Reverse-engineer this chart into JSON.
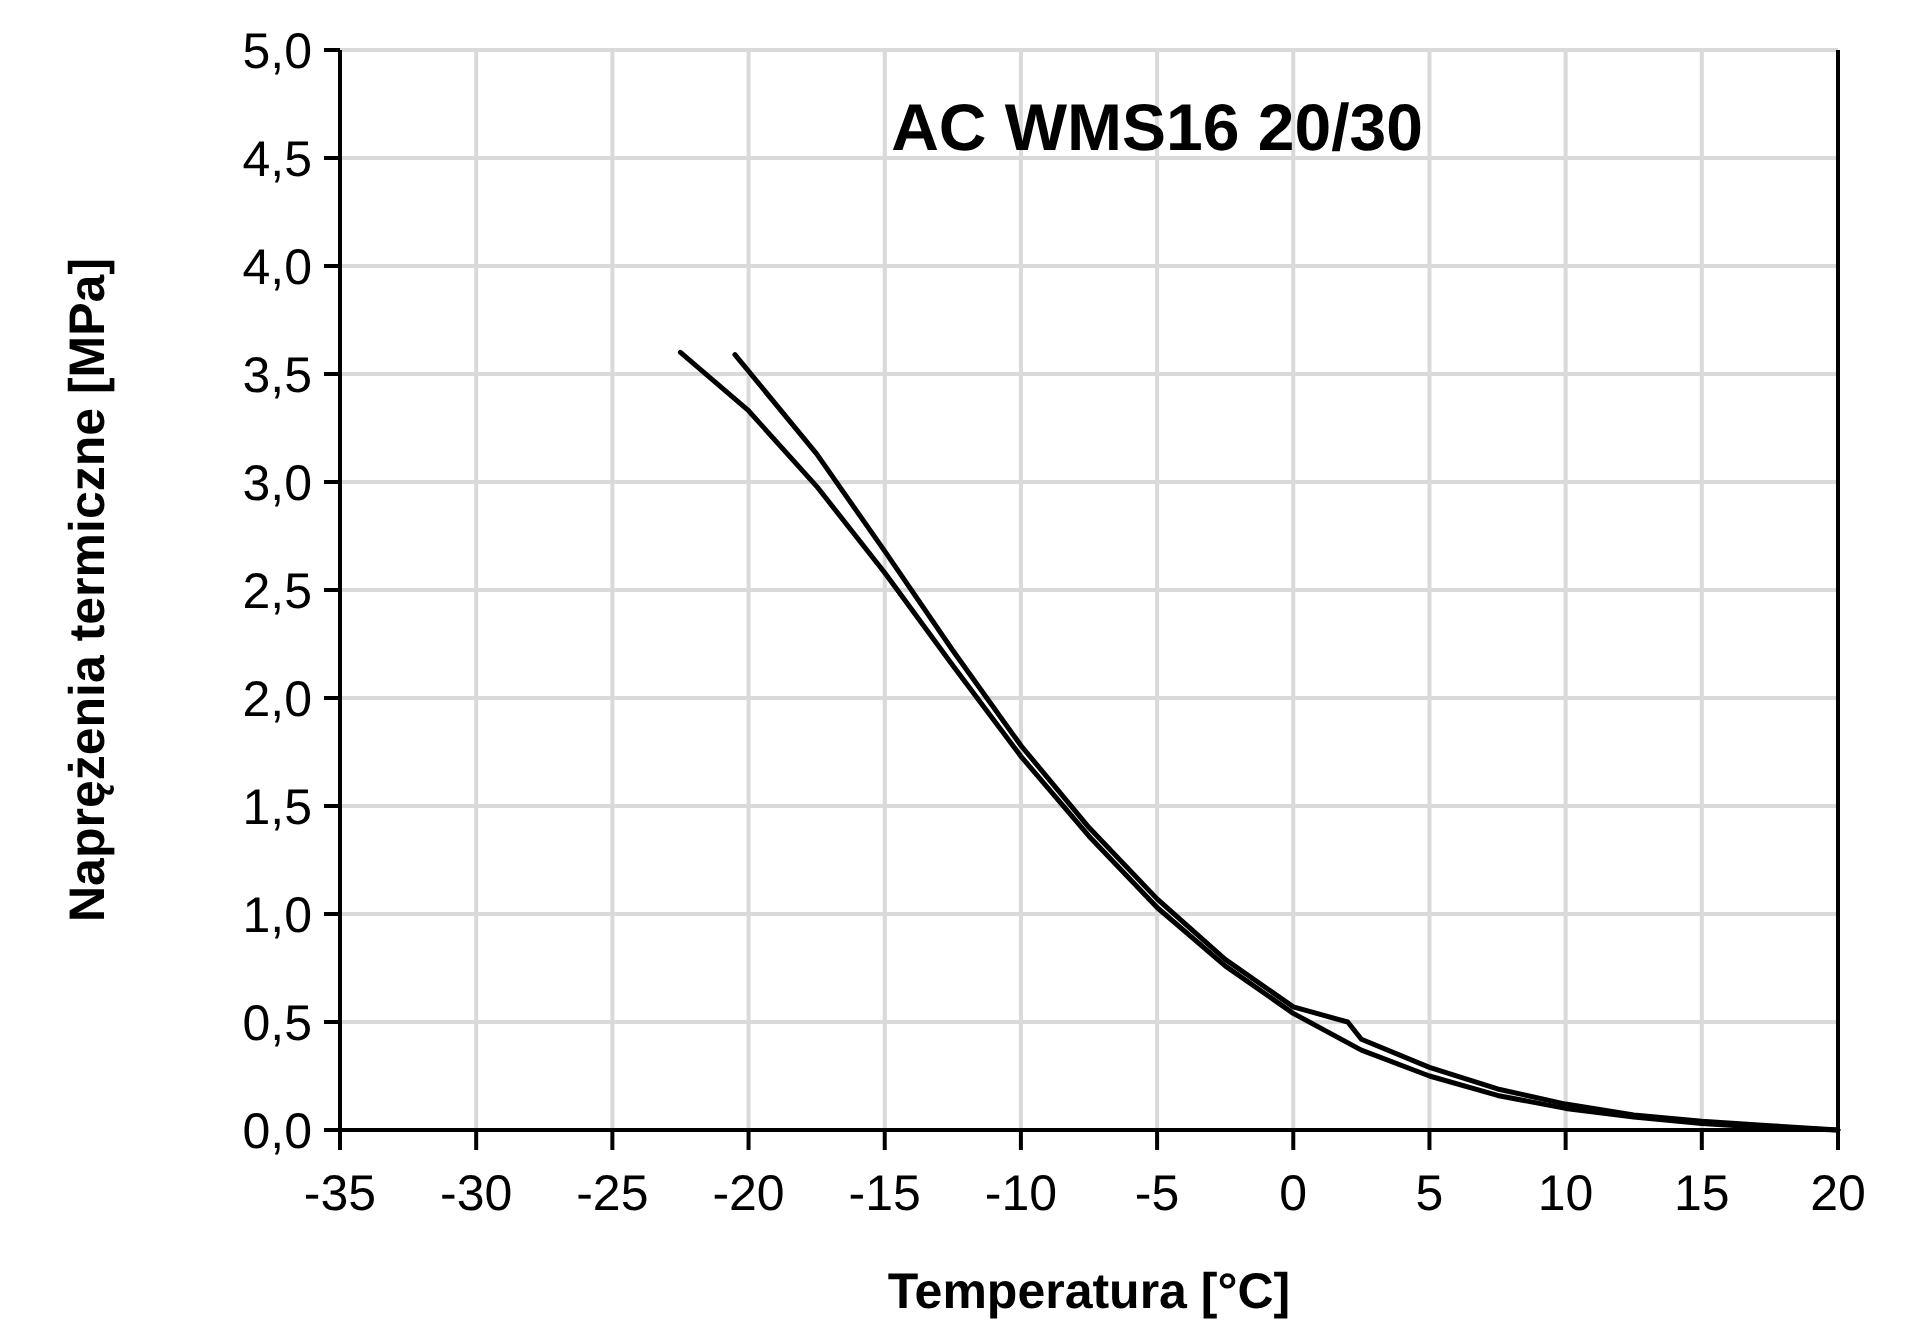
{
  "chart_data": {
    "type": "line",
    "title": "AC WMS16 20/30",
    "xlabel": "Temperatura [°C]",
    "ylabel": "Naprężenia termiczne [MPa]",
    "xlim": [
      -35,
      20
    ],
    "xticks": [
      -35,
      -30,
      -25,
      -20,
      -15,
      -10,
      -5,
      0,
      5,
      10,
      15,
      20
    ],
    "ylim": [
      0,
      5
    ],
    "yticks": [
      {
        "value": 0,
        "label": "0,0"
      },
      {
        "value": 0.5,
        "label": "0,5"
      },
      {
        "value": 1,
        "label": "1,0"
      },
      {
        "value": 1.5,
        "label": "1,5"
      },
      {
        "value": 2,
        "label": "2,0"
      },
      {
        "value": 2.5,
        "label": "2,5"
      },
      {
        "value": 3,
        "label": "3,0"
      },
      {
        "value": 3.5,
        "label": "3,5"
      },
      {
        "value": 4,
        "label": "4,0"
      },
      {
        "value": 4.5,
        "label": "4,5"
      },
      {
        "value": 5,
        "label": "5,0"
      }
    ],
    "grid": true,
    "marker": "none",
    "line_style": "solid",
    "series": [
      {
        "color": "#000000",
        "x": [
          -22.5,
          -20,
          -17.5,
          -15,
          -12.5,
          -10,
          -7.5,
          -5,
          -2.5,
          0,
          2.5,
          5,
          7.5,
          10,
          12.5,
          15,
          17.5,
          20
        ],
        "values": [
          3.6,
          3.33,
          2.98,
          2.58,
          2.15,
          1.73,
          1.36,
          1.03,
          0.76,
          0.54,
          0.37,
          0.25,
          0.16,
          0.1,
          0.06,
          0.03,
          0.01,
          0
        ]
      },
      {
        "color": "#000000",
        "x": [
          -20.5,
          -17.5,
          -15,
          -12.5,
          -10,
          -7.5,
          -5,
          -2.5,
          0,
          2,
          2.5,
          5,
          7.5,
          10,
          12.5,
          15,
          17.5,
          20
        ],
        "values": [
          3.59,
          3.13,
          2.68,
          2.22,
          1.78,
          1.4,
          1.07,
          0.79,
          0.57,
          0.5,
          0.42,
          0.29,
          0.19,
          0.12,
          0.07,
          0.04,
          0.02,
          0
        ]
      }
    ]
  }
}
